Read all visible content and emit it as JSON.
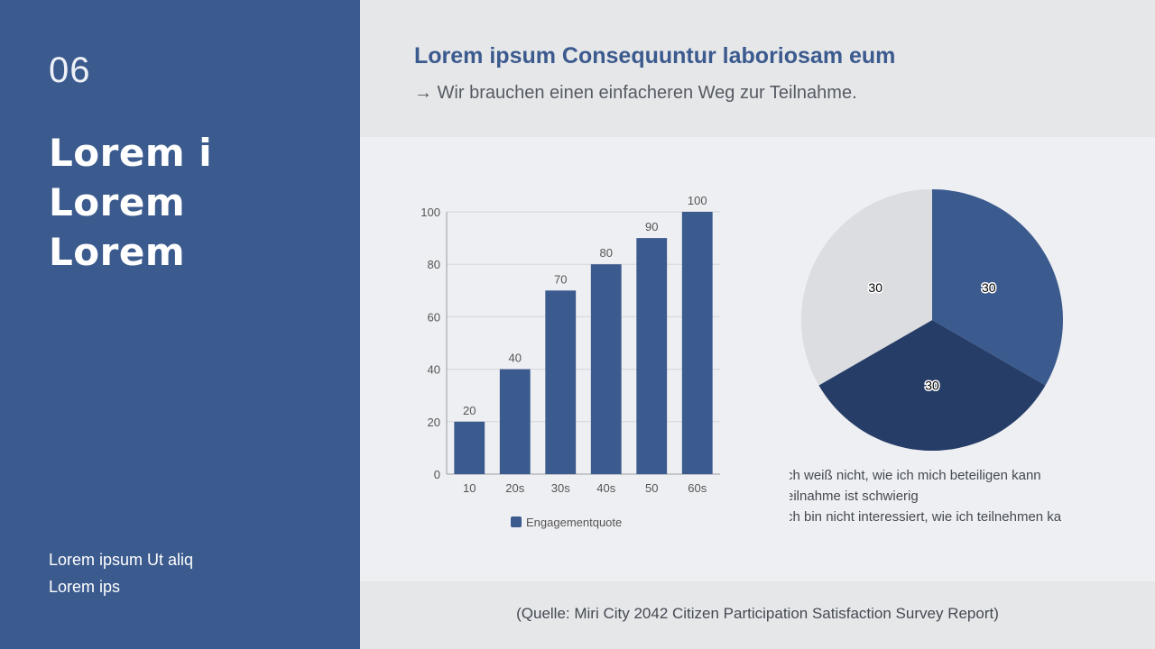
{
  "sidebar": {
    "number": "06",
    "title_lines": [
      "Lorem i",
      "Lorem",
      "Lorem"
    ],
    "footer_lines": [
      "Lorem ipsum Ut aliq",
      "Lorem ips"
    ]
  },
  "header": {
    "title": "Lorem ipsum Consequuntur laboriosam eum",
    "subtitle": "→ Wir brauchen einen einfacheren Weg zur Teilnahme."
  },
  "chart_data": [
    {
      "type": "bar",
      "categories": [
        "10",
        "20s",
        "30s",
        "40s",
        "50",
        "60s"
      ],
      "series": [
        {
          "name": "Engagementquote",
          "values": [
            20,
            40,
            70,
            80,
            90,
            100
          ]
        }
      ],
      "ylim": [
        0,
        100
      ],
      "yticks": [
        0,
        20,
        40,
        60,
        80,
        100
      ],
      "grid": true,
      "legend": "bottom",
      "color": "#3b5a8e"
    },
    {
      "type": "pie",
      "values": [
        30,
        30,
        30
      ],
      "labels": [
        "ch weiß nicht, wie ich mich beteiligen kann",
        "eilnahme ist schwierig",
        "ch bin nicht interessiert, wie ich teilnehmen ka"
      ],
      "colors": [
        "#3b5a8e",
        "#263d68",
        "#dcdde0"
      ],
      "legend": "bottom"
    }
  ],
  "source": "(Quelle: Miri City 2042 Citizen Participation Satisfaction Survey Report)"
}
